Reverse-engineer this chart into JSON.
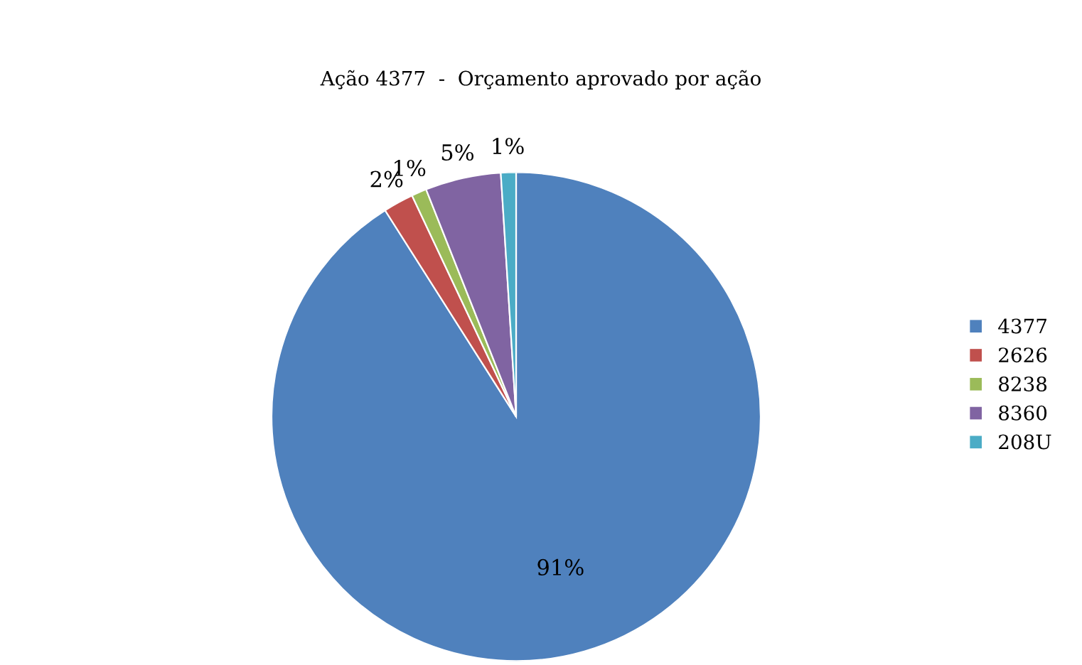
{
  "chart_data": {
    "type": "pie",
    "title": "Ação 4377  -  Orçamento aprovado por ação",
    "categories": [
      "4377",
      "2626",
      "8238",
      "8360",
      "208U"
    ],
    "values": [
      91,
      2,
      1,
      5,
      1
    ],
    "colors": [
      "#4f81bd",
      "#c0504d",
      "#9bbb59",
      "#8064a2",
      "#4bacc6"
    ],
    "value_labels": [
      "91%",
      "2%",
      "1%",
      "5%",
      "1%"
    ],
    "legend": "right"
  }
}
